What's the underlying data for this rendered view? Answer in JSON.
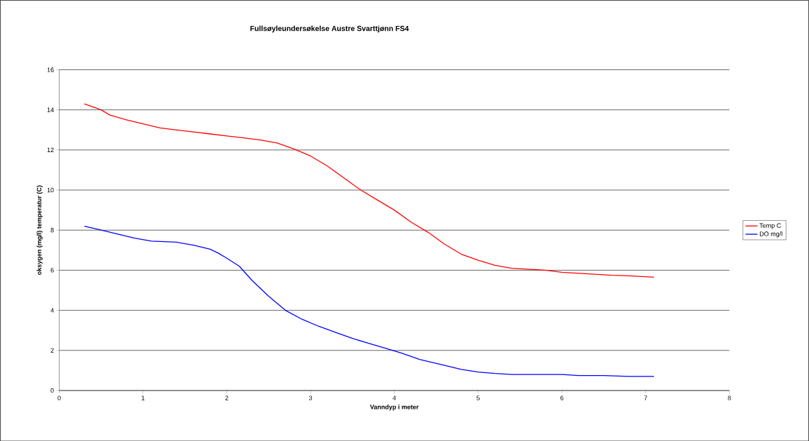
{
  "chart_data": {
    "type": "line",
    "title": "Fullsøyleundersøkelse Austre Svarttjønn FS4",
    "xlabel": "Vanndyp i meter",
    "ylabel": "oksygen (mg/l)  temperatur (C)",
    "xlim": [
      0,
      8
    ],
    "ylim": [
      0,
      16
    ],
    "xticks": [
      0,
      1,
      2,
      3,
      4,
      5,
      6,
      7,
      8
    ],
    "yticks": [
      0,
      2,
      4,
      6,
      8,
      10,
      12,
      14,
      16
    ],
    "grid": "y",
    "legend": "right",
    "marker": "none",
    "line_style": "solid",
    "series": [
      {
        "name": "Temp C",
        "color": "#ff0000",
        "x": [
          0.3,
          0.5,
          0.6,
          0.8,
          1.0,
          1.2,
          1.4,
          1.6,
          1.8,
          2.0,
          2.2,
          2.4,
          2.6,
          2.8,
          3.0,
          3.2,
          3.4,
          3.6,
          3.8,
          4.0,
          4.2,
          4.4,
          4.6,
          4.8,
          5.0,
          5.2,
          5.4,
          5.6,
          5.8,
          6.0,
          6.2,
          6.4,
          6.6,
          6.8,
          7.1
        ],
        "values": [
          14.3,
          14.0,
          13.75,
          13.5,
          13.3,
          13.1,
          13.0,
          12.9,
          12.8,
          12.7,
          12.6,
          12.5,
          12.35,
          12.05,
          11.7,
          11.2,
          10.6,
          10.0,
          9.5,
          9.0,
          8.4,
          7.9,
          7.3,
          6.8,
          6.5,
          6.25,
          6.1,
          6.05,
          6.0,
          5.9,
          5.85,
          5.8,
          5.75,
          5.72,
          5.65
        ]
      },
      {
        "name": "DO mg/l",
        "color": "#0000ff",
        "x": [
          0.3,
          0.5,
          0.7,
          0.9,
          1.1,
          1.4,
          1.6,
          1.8,
          1.9,
          2.0,
          2.15,
          2.3,
          2.5,
          2.7,
          2.9,
          3.1,
          3.3,
          3.5,
          3.7,
          3.9,
          4.1,
          4.3,
          4.6,
          4.8,
          5.0,
          5.2,
          5.4,
          5.7,
          6.0,
          6.2,
          6.5,
          6.8,
          7.1
        ],
        "values": [
          8.2,
          8.0,
          7.8,
          7.6,
          7.45,
          7.4,
          7.25,
          7.05,
          6.85,
          6.6,
          6.2,
          5.5,
          4.7,
          4.0,
          3.55,
          3.2,
          2.9,
          2.6,
          2.35,
          2.1,
          1.85,
          1.55,
          1.25,
          1.05,
          0.92,
          0.85,
          0.8,
          0.8,
          0.8,
          0.75,
          0.75,
          0.7,
          0.7
        ]
      }
    ]
  }
}
